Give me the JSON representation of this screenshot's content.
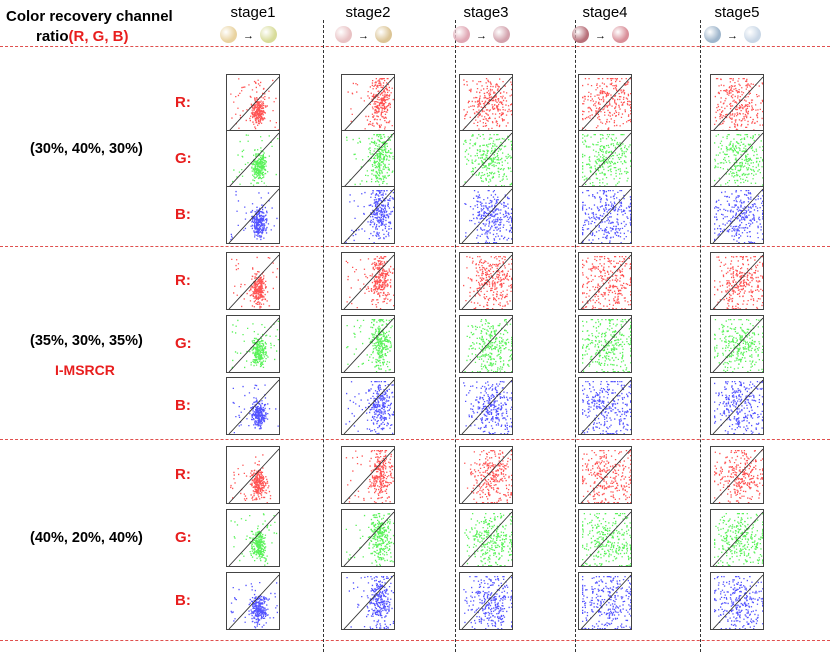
{
  "header": {
    "title_line1": "Color recovery channel",
    "title_line2_prefix": "ratio",
    "title_line2_highlight": "(R, G, B)"
  },
  "stages": [
    {
      "label": "stage1",
      "thumb_before": "#e9d3a0",
      "thumb_after": "#d8dc9a"
    },
    {
      "label": "stage2",
      "thumb_before": "#e9c2c4",
      "thumb_after": "#dcc596"
    },
    {
      "label": "stage3",
      "thumb_before": "#e0a7b4",
      "thumb_after": "#d3a2ad"
    },
    {
      "label": "stage4",
      "thumb_before": "#b8707a",
      "thumb_after": "#d98f99"
    },
    {
      "label": "stage5",
      "thumb_before": "#9fb6cc",
      "thumb_after": "#c9d7e6"
    }
  ],
  "arrow_glyph": "→",
  "groups": [
    {
      "ratio": "(30%, 40%, 30%)",
      "method": ""
    },
    {
      "ratio": "(35%, 30%, 35%)",
      "method": "I-MSRCR"
    },
    {
      "ratio": "(40%, 20%, 40%)",
      "method": ""
    }
  ],
  "channels": [
    {
      "label": "R:",
      "color": "#ff1a1a"
    },
    {
      "label": "G:",
      "color": "#22ee22"
    },
    {
      "label": "B:",
      "color": "#1a1aff"
    }
  ],
  "chart_data": {
    "type": "scatter",
    "title": "Color recovery channel ratio (R, G, B)",
    "description": "Grid of channel scatter plots (input intensity vs recovered intensity, 0-255) with a diagonal reference line y = x",
    "xlim": [
      0,
      255
    ],
    "ylim": [
      0,
      255
    ],
    "reference_line": "y = x",
    "columns": [
      "stage1",
      "stage2",
      "stage3",
      "stage4",
      "stage5"
    ],
    "row_groups": [
      "(30%, 40%, 30%)",
      "(35%, 30%, 35%)",
      "(40%, 20%, 40%)"
    ],
    "channels": [
      "R",
      "G",
      "B"
    ],
    "cluster_profiles": {
      "stage1": {
        "x": [
          120,
          180
        ],
        "y": [
          40,
          150
        ]
      },
      "stage2": {
        "x": [
          140,
          230
        ],
        "y": [
          40,
          240
        ]
      },
      "stage3": {
        "x": [
          60,
          240
        ],
        "y": [
          20,
          230
        ]
      },
      "stage4": {
        "x": [
          10,
          250
        ],
        "y": [
          10,
          250
        ]
      },
      "stage5": {
        "x": [
          30,
          240
        ],
        "y": [
          20,
          240
        ]
      }
    }
  }
}
